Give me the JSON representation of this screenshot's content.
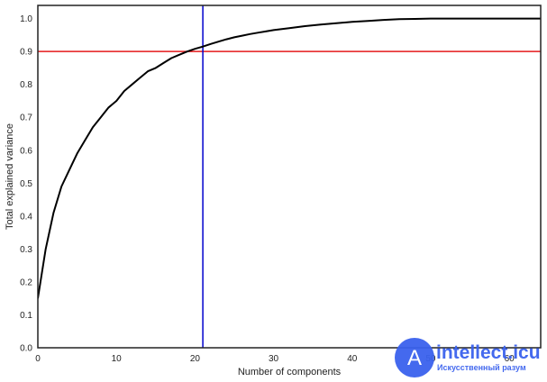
{
  "chart_data": {
    "type": "line",
    "title": "",
    "xlabel": "Number of components",
    "ylabel": "Total explained variance",
    "xlim": [
      0,
      64
    ],
    "ylim": [
      0,
      1.04
    ],
    "xticks": [
      0,
      10,
      20,
      30,
      40,
      50,
      60
    ],
    "xtick_labels": [
      "0",
      "10",
      "20",
      "30",
      "40",
      "50",
      "60"
    ],
    "yticks": [
      0.0,
      0.1,
      0.2,
      0.3,
      0.4,
      0.5,
      0.6,
      0.7,
      0.8,
      0.9,
      1.0
    ],
    "ytick_labels": [
      "0.0",
      "0.1",
      "0.2",
      "0.3",
      "0.4",
      "0.5",
      "0.6",
      "0.7",
      "0.8",
      "0.9",
      "1.0"
    ],
    "grid": false,
    "series": [
      {
        "color": "#000000",
        "x": [
          0,
          1,
          2,
          3,
          4,
          5,
          6,
          7,
          8,
          9,
          10,
          11,
          12,
          13,
          14,
          15,
          16,
          17,
          18,
          19,
          20,
          21,
          22,
          23,
          24,
          25,
          26,
          27,
          28,
          29,
          30,
          32,
          34,
          36,
          38,
          40,
          42,
          44,
          46,
          48,
          50,
          52,
          54,
          56,
          58,
          60,
          62,
          64
        ],
        "y": [
          0.15,
          0.3,
          0.41,
          0.49,
          0.54,
          0.59,
          0.63,
          0.67,
          0.7,
          0.73,
          0.75,
          0.78,
          0.8,
          0.82,
          0.84,
          0.85,
          0.865,
          0.88,
          0.89,
          0.9,
          0.908,
          0.915,
          0.923,
          0.93,
          0.937,
          0.943,
          0.948,
          0.953,
          0.957,
          0.961,
          0.965,
          0.971,
          0.977,
          0.982,
          0.986,
          0.99,
          0.993,
          0.996,
          0.998,
          0.999,
          1.0,
          1.0,
          1.0,
          1.0,
          1.0,
          1.0,
          1.0,
          1.0
        ]
      }
    ],
    "hlines": [
      {
        "y": 0.9,
        "color": "#e41a1c"
      }
    ],
    "vlines": [
      {
        "x": 21,
        "color": "#0000cc"
      }
    ]
  },
  "watermark": {
    "logo_letter": "A",
    "title": "intellect.icu",
    "subtitle": "Искусственный разум",
    "color": "#3a62ee"
  }
}
